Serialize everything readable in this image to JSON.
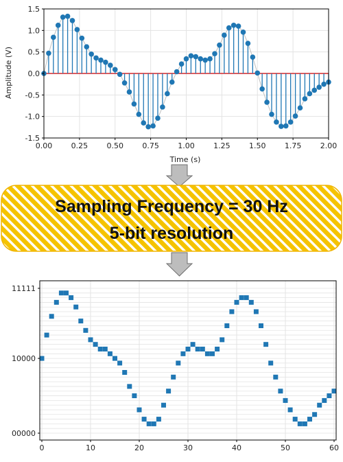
{
  "banner": {
    "line1": "Sampling Frequency = 30 Hz",
    "line2": "5-bit resolution"
  },
  "colors": {
    "stem": "#1f77b4",
    "baseline": "#d62728",
    "analog_line": "#bfbfbf",
    "banner_fill": "#f5c300",
    "banner_stripe": "#ffffff",
    "arrow": "#bdbdbd",
    "grid": "#e3e3e3"
  },
  "chart_data": [
    {
      "type": "stem",
      "title": "",
      "xlabel": "Time (s)",
      "ylabel": "Amplitude (V)",
      "xlim": [
        0,
        2
      ],
      "ylim": [
        -1.5,
        1.5
      ],
      "grid": true,
      "xticks": [
        "0.00",
        "0.25",
        "0.50",
        "0.75",
        "1.00",
        "1.25",
        "1.50",
        "1.75",
        "2.00"
      ],
      "yticks": [
        "1.5",
        "1.0",
        "0.5",
        "0.0",
        "-0.5",
        "-1.0",
        "-1.5"
      ],
      "x": [
        0.0,
        0.0333,
        0.0667,
        0.1,
        0.1333,
        0.1667,
        0.2,
        0.2333,
        0.2667,
        0.3,
        0.3333,
        0.3667,
        0.4,
        0.4333,
        0.4667,
        0.5,
        0.5333,
        0.5667,
        0.6,
        0.6333,
        0.6667,
        0.7,
        0.7333,
        0.7667,
        0.8,
        0.8333,
        0.8667,
        0.9,
        0.9333,
        0.9667,
        1.0,
        1.0333,
        1.0667,
        1.1,
        1.1333,
        1.1667,
        1.2,
        1.2333,
        1.2667,
        1.3,
        1.3333,
        1.3667,
        1.4,
        1.4333,
        1.4667,
        1.5,
        1.5333,
        1.5667,
        1.6,
        1.6333,
        1.6667,
        1.7,
        1.7333,
        1.7667,
        1.8,
        1.8333,
        1.8667,
        1.9,
        1.9333,
        1.9667,
        2.0
      ],
      "values": [
        0.0,
        0.47,
        0.84,
        1.12,
        1.31,
        1.33,
        1.23,
        1.02,
        0.82,
        0.62,
        0.45,
        0.36,
        0.31,
        0.26,
        0.19,
        0.09,
        -0.02,
        -0.22,
        -0.43,
        -0.71,
        -0.95,
        -1.15,
        -1.24,
        -1.22,
        -1.04,
        -0.78,
        -0.47,
        -0.2,
        0.04,
        0.22,
        0.34,
        0.41,
        0.39,
        0.34,
        0.31,
        0.34,
        0.46,
        0.66,
        0.89,
        1.06,
        1.12,
        1.1,
        0.96,
        0.7,
        0.38,
        0.01,
        -0.36,
        -0.67,
        -0.95,
        -1.13,
        -1.23,
        -1.22,
        -1.13,
        -0.99,
        -0.8,
        -0.59,
        -0.47,
        -0.39,
        -0.32,
        -0.25,
        -0.2
      ]
    },
    {
      "type": "scatter",
      "title": "",
      "xlabel": "",
      "ylabel": "",
      "xlim": [
        0,
        60
      ],
      "ylim": [
        0,
        31
      ],
      "grid": true,
      "xticks": [
        "0",
        "10",
        "20",
        "30",
        "40",
        "50",
        "60"
      ],
      "yticks": [
        "11111",
        "10000",
        "00000"
      ],
      "x": [
        0,
        1,
        2,
        3,
        4,
        5,
        6,
        7,
        8,
        9,
        10,
        11,
        12,
        13,
        14,
        15,
        16,
        17,
        18,
        19,
        20,
        21,
        22,
        23,
        24,
        25,
        26,
        27,
        28,
        29,
        30,
        31,
        32,
        33,
        34,
        35,
        36,
        37,
        38,
        39,
        40,
        41,
        42,
        43,
        44,
        45,
        46,
        47,
        48,
        49,
        50,
        51,
        52,
        53,
        54,
        55,
        56,
        57,
        58,
        59,
        60
      ],
      "values": [
        16,
        21,
        25,
        28,
        30,
        30,
        29,
        27,
        24,
        22,
        20,
        19,
        18,
        18,
        17,
        16,
        15,
        13,
        10,
        8,
        5,
        3,
        2,
        2,
        3,
        6,
        9,
        12,
        15,
        17,
        18,
        19,
        18,
        18,
        17,
        17,
        18,
        20,
        23,
        26,
        28,
        29,
        29,
        28,
        26,
        23,
        19,
        15,
        12,
        9,
        7,
        5,
        3,
        2,
        2,
        3,
        4,
        6,
        7,
        8,
        9
      ]
    }
  ]
}
